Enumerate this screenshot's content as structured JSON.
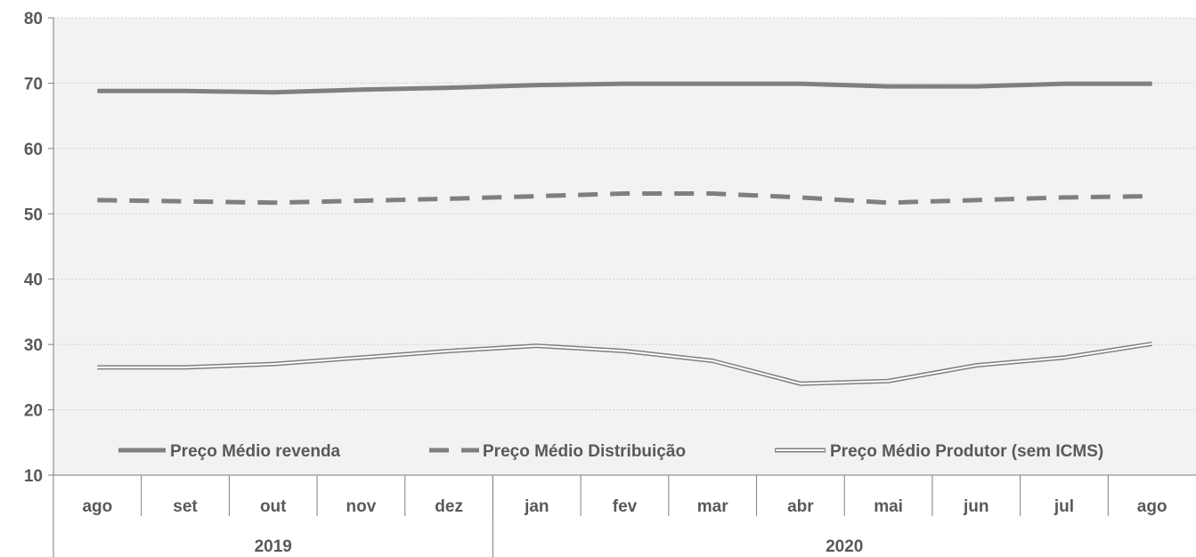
{
  "chart_data": {
    "type": "line",
    "months": [
      "ago",
      "set",
      "out",
      "nov",
      "dez",
      "jan",
      "fev",
      "mar",
      "abr",
      "mai",
      "jun",
      "jul",
      "ago"
    ],
    "years": [
      {
        "label": "2019",
        "span": 5
      },
      {
        "label": "2020",
        "span": 8
      }
    ],
    "ylim": [
      10,
      80
    ],
    "yticks": [
      "10",
      "20",
      "30",
      "40",
      "50",
      "60",
      "70",
      "80"
    ],
    "grid": true,
    "legend_position": "bottom, inside plot",
    "series": [
      {
        "name": "Preço Médio revenda",
        "style": "solid",
        "color": "#7f7f7f",
        "values": [
          68.8,
          68.8,
          68.6,
          69.0,
          69.3,
          69.7,
          69.9,
          69.9,
          69.9,
          69.5,
          69.5,
          69.9,
          69.9
        ]
      },
      {
        "name": "Preço Médio Distribuição",
        "style": "dashed",
        "color": "#7f7f7f",
        "values": [
          52.1,
          51.9,
          51.7,
          52.0,
          52.3,
          52.7,
          53.1,
          53.1,
          52.5,
          51.7,
          52.1,
          52.5,
          52.7
        ]
      },
      {
        "name": "Preço Médio Produtor (sem ICMS)",
        "style": "double",
        "color": "#7f7f7f",
        "values": [
          26.5,
          26.5,
          27.0,
          28.0,
          29.0,
          29.8,
          29.0,
          27.5,
          24.0,
          24.4,
          26.8,
          28.0,
          30.1
        ]
      }
    ]
  }
}
